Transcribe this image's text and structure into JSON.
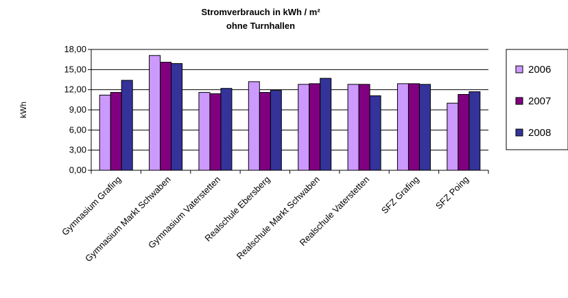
{
  "chart_data": {
    "type": "bar",
    "title": "Stromverbrauch in kWh / m²",
    "subtitle": "ohne Turnhallen",
    "ylabel": "kWh",
    "xlabel": "",
    "ylim": [
      0,
      18
    ],
    "yticks": [
      "0,00",
      "3,00",
      "6,00",
      "9,00",
      "12,00",
      "15,00",
      "18,00"
    ],
    "grid": true,
    "legend_position": "right",
    "categories": [
      "Gymnasium Grafing",
      "Gymnasium Markt Schwaben",
      "Gymnasium Vaterstetten",
      "Realschule Ebersberg",
      "Realschule Markt Schwaben",
      "Realschule Vaterstetten",
      "SFZ Grafing",
      "SFZ Poing"
    ],
    "series": [
      {
        "name": "2006",
        "color": "#cc99ff",
        "values": [
          11.2,
          17.1,
          11.6,
          13.2,
          12.8,
          12.8,
          12.9,
          10.0
        ]
      },
      {
        "name": "2007",
        "color": "#800080",
        "values": [
          11.6,
          16.1,
          11.4,
          11.6,
          12.9,
          12.8,
          12.9,
          11.3
        ]
      },
      {
        "name": "2008",
        "color": "#333399",
        "values": [
          13.4,
          15.9,
          12.2,
          11.9,
          13.7,
          11.1,
          12.8,
          11.7
        ]
      }
    ]
  }
}
